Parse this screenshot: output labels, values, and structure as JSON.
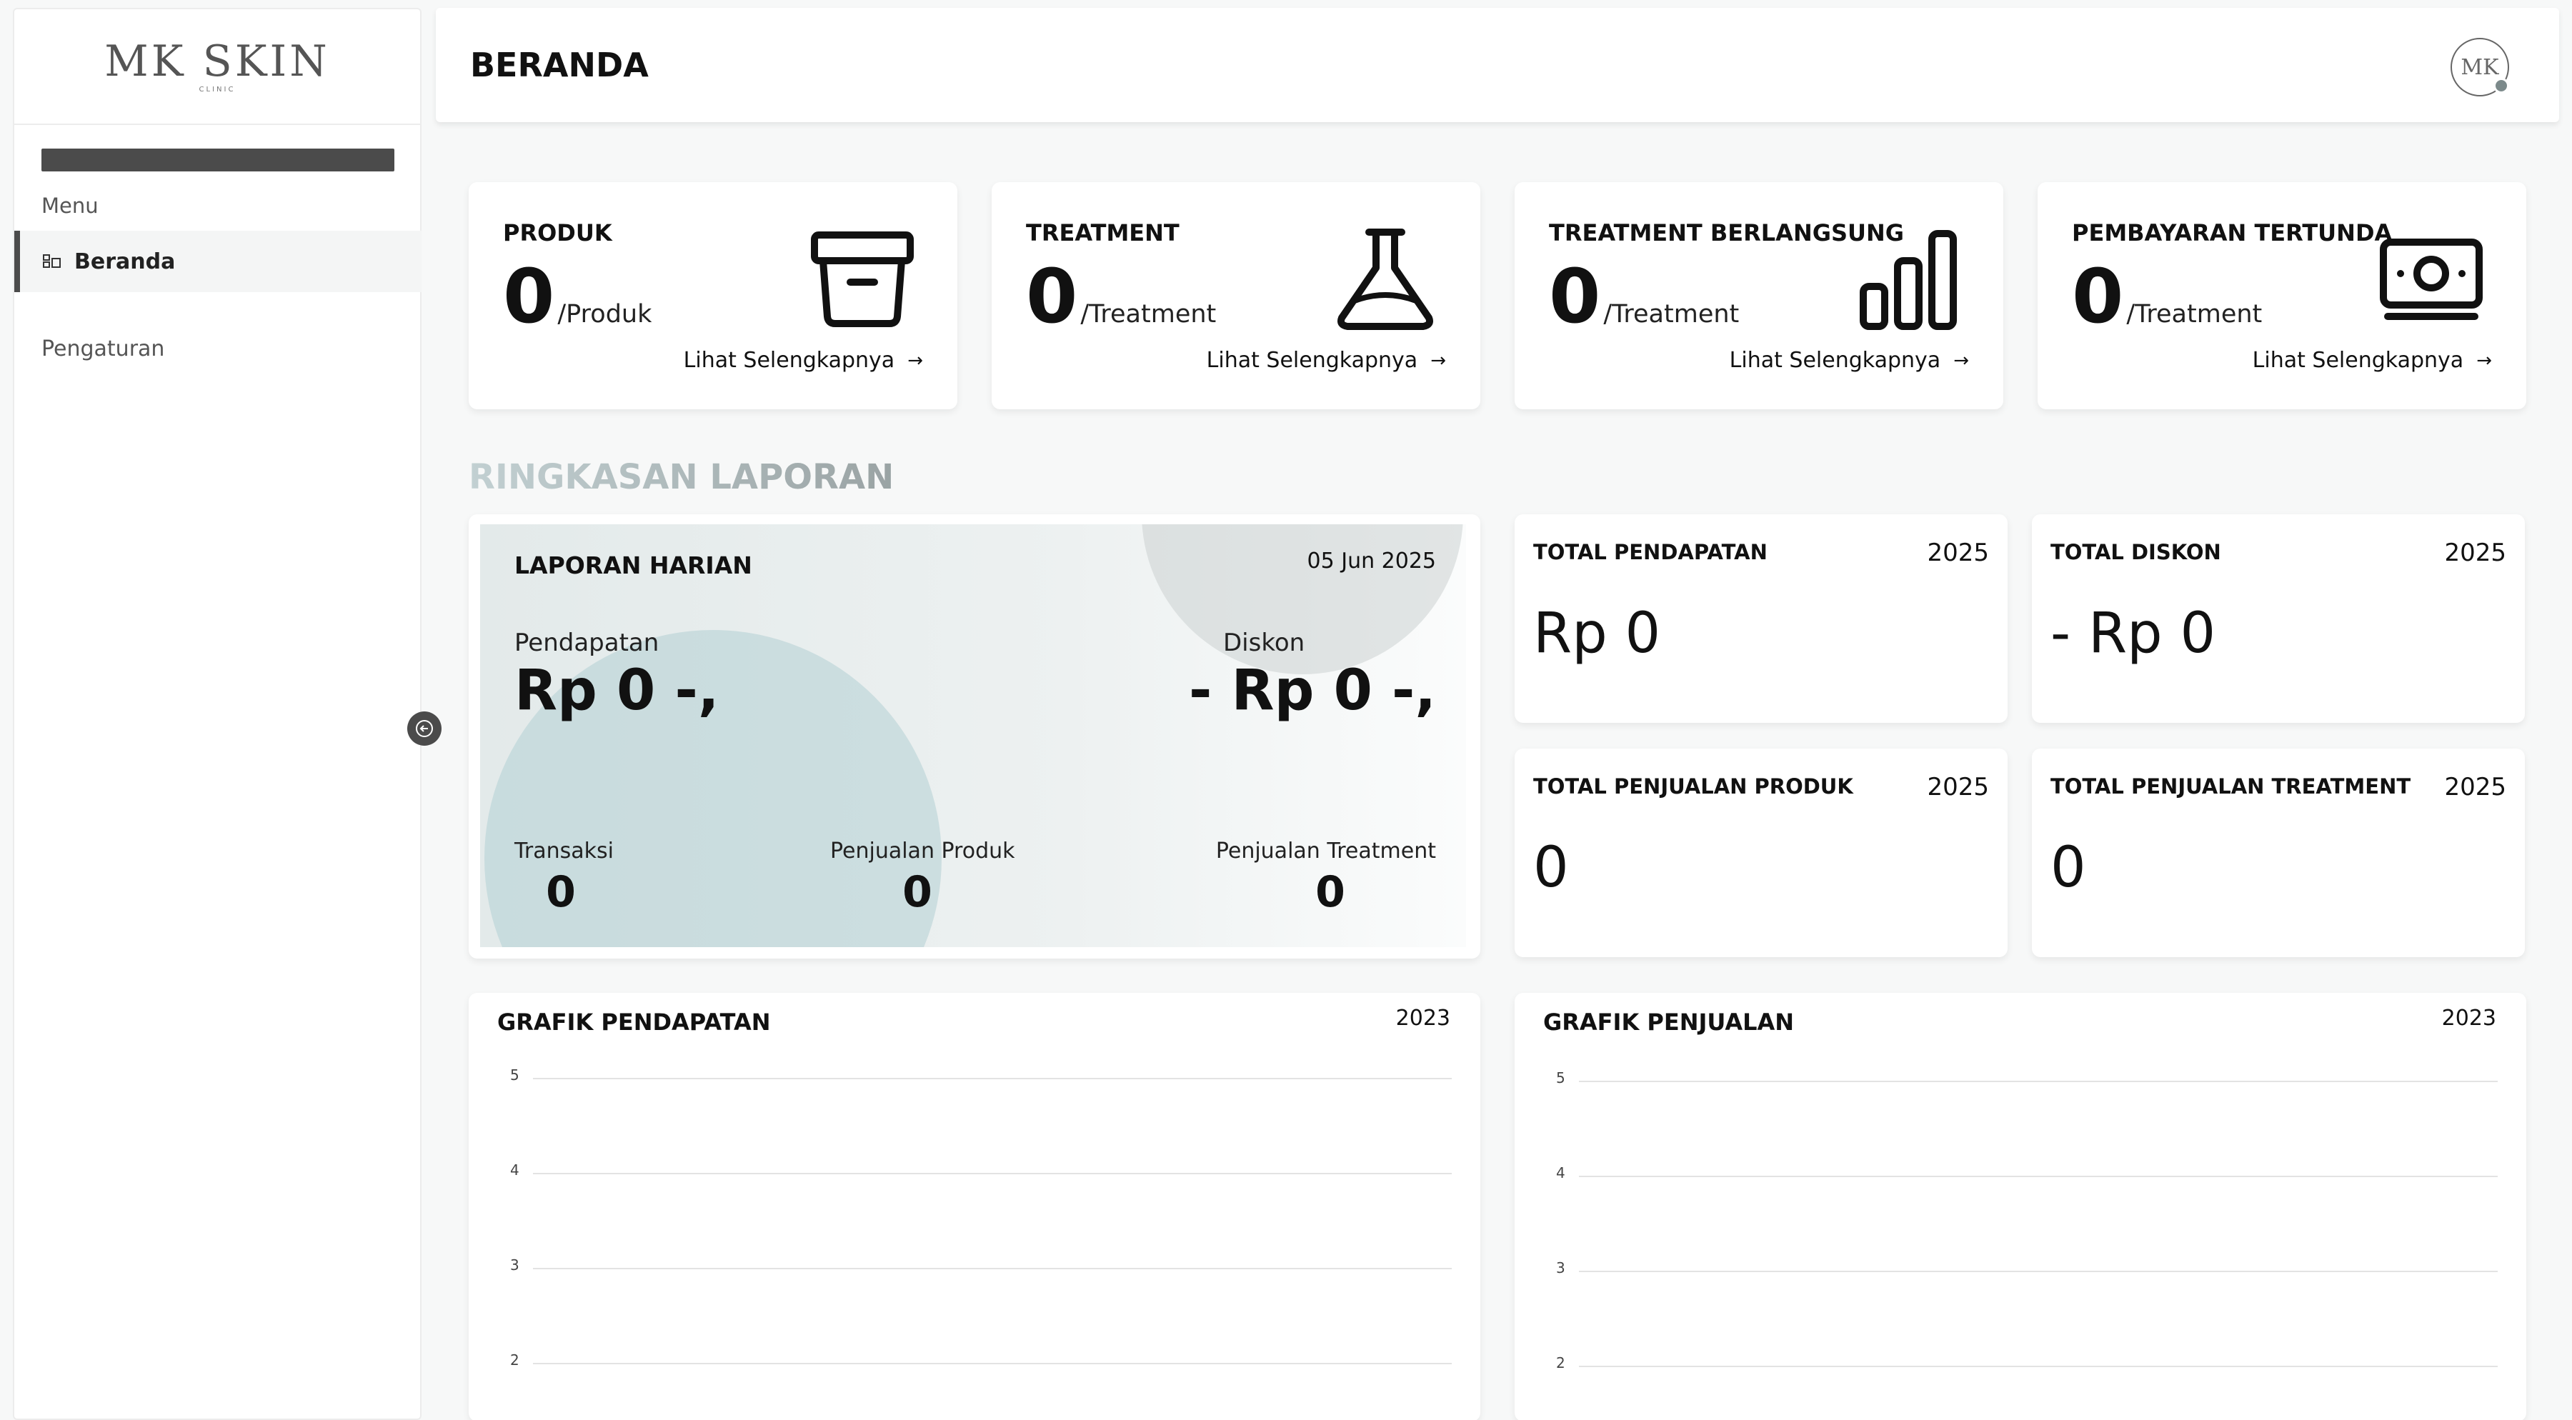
{
  "brand": {
    "logo": "MK SKIN",
    "logo_sub": "CLINIC"
  },
  "sidebar": {
    "menu_label": "Menu",
    "items": [
      {
        "label": "Beranda",
        "icon": "dashboard-icon",
        "active": true
      }
    ],
    "settings_label": "Pengaturan"
  },
  "header": {
    "title": "BERANDA",
    "avatar_initials": "MK"
  },
  "stats": [
    {
      "title": "PRODUK",
      "value": "0",
      "unit": "/Produk",
      "link": "Lihat Selengkapnya",
      "icon": "box-icon"
    },
    {
      "title": "TREATMENT",
      "value": "0",
      "unit": "/Treatment",
      "link": "Lihat Selengkapnya",
      "icon": "flask-icon"
    },
    {
      "title": "TREATMENT BERLANGSUNG",
      "value": "0",
      "unit": "/Treatment",
      "link": "Lihat Selengkapnya",
      "icon": "bar-chart-icon"
    },
    {
      "title": "PEMBAYARAN TERTUNDA",
      "value": "0",
      "unit": "/Treatment",
      "link": "Lihat Selengkapnya",
      "icon": "money-icon"
    }
  ],
  "report": {
    "section_title": "RINGKASAN LAPORAN",
    "daily": {
      "title": "LAPORAN HARIAN",
      "date": "05 Jun 2025",
      "income_label": "Pendapatan",
      "income_value": "Rp 0 -,",
      "discount_label": "Diskon",
      "discount_value": "- Rp 0 -,",
      "transactions_label": "Transaksi",
      "transactions_value": "0",
      "product_sales_label": "Penjualan Produk",
      "product_sales_value": "0",
      "treatment_sales_label": "Penjualan Treatment",
      "treatment_sales_value": "0"
    },
    "totals": [
      {
        "title": "TOTAL PENDAPATAN",
        "year": "2025",
        "value": "Rp 0"
      },
      {
        "title": "TOTAL DISKON",
        "year": "2025",
        "value": "- Rp 0"
      },
      {
        "title": "TOTAL PENJUALAN PRODUK",
        "year": "2025",
        "value": "0"
      },
      {
        "title": "TOTAL PENJUALAN TREATMENT",
        "year": "2025",
        "value": "0"
      }
    ]
  },
  "charts": [
    {
      "title": "GRAFIK PENDAPATAN",
      "year": "2023"
    },
    {
      "title": "GRAFIK PENJUALAN",
      "year": "2023"
    }
  ],
  "chart_data": [
    {
      "type": "line",
      "title": "GRAFIK PENDAPATAN",
      "y_ticks": [
        5,
        4,
        3,
        2
      ],
      "series": [],
      "grid": true
    },
    {
      "type": "line",
      "title": "GRAFIK PENJUALAN",
      "y_ticks": [
        5,
        4,
        3,
        2
      ],
      "series": [],
      "grid": true
    }
  ],
  "colors": {
    "accent_dark": "#4b4b4b",
    "section_title": "#a9b8ba"
  }
}
